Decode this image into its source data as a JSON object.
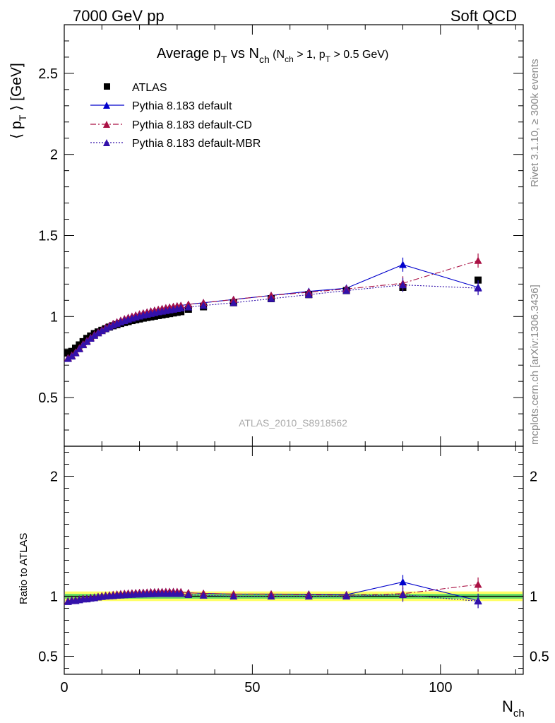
{
  "header": {
    "left": "7000 GeV pp",
    "right": "Soft QCD"
  },
  "side_labels": {
    "rivet": "Rivet 3.1.10, ≥ 300k events",
    "mcplots": "mcplots.cern.ch [arXiv:1306.3436]"
  },
  "watermark": "ATLAS_2010_S8918562",
  "colors": {
    "atlas": "#000000",
    "default": "#0000cc",
    "cd": "#aa1144",
    "mbr": "#3311aa",
    "band_inner": "#66dd66",
    "band_outer": "#ffff66"
  },
  "chart_data": {
    "type": "scatter",
    "title": {
      "main": "Average p",
      "main_sub": "T",
      "mid": " vs N",
      "mid_sub": "ch",
      "cond_open": " (N",
      "cond_sub1": "ch",
      "cond_mid": " > 1, p",
      "cond_sub2": "T",
      "cond_close": " > 0.5 GeV)"
    },
    "ylabel": {
      "pre": "⟨ p",
      "sub": "T",
      "post": " ⟩ [GeV]"
    },
    "xlabel": {
      "main": "N",
      "sub": "ch"
    },
    "ratio_ylabel": "Ratio to ATLAS",
    "xlim": [
      0,
      122
    ],
    "ylim": [
      0.2,
      2.8
    ],
    "ratio_ylim": [
      0.35,
      2.25
    ],
    "x_ticks": [
      "0",
      "50",
      "100"
    ],
    "y_ticks": [
      "0.5",
      "1",
      "1.5",
      "2",
      "2.5"
    ],
    "ratio_y_ticks": [
      "0.5",
      "1",
      "2"
    ],
    "x": [
      1,
      2,
      3,
      4,
      5,
      6,
      7,
      8,
      9,
      10,
      11,
      12,
      13,
      14,
      15,
      16,
      17,
      18,
      19,
      20,
      21,
      22,
      23,
      24,
      25,
      26,
      27,
      28,
      29,
      30,
      31,
      33,
      37,
      45,
      55,
      65,
      75,
      90,
      110
    ],
    "series": [
      {
        "name": "ATLAS",
        "key": "atlas",
        "marker": "square",
        "values": [
          0.775,
          0.785,
          0.805,
          0.825,
          0.845,
          0.865,
          0.88,
          0.895,
          0.905,
          0.915,
          0.925,
          0.935,
          0.943,
          0.95,
          0.957,
          0.963,
          0.969,
          0.975,
          0.98,
          0.985,
          0.99,
          0.994,
          0.998,
          1.002,
          1.006,
          1.01,
          1.014,
          1.018,
          1.022,
          1.026,
          1.03,
          1.045,
          1.06,
          1.085,
          1.11,
          1.135,
          1.16,
          1.18,
          1.225
        ]
      },
      {
        "name": "Pythia 8.183 default",
        "key": "default",
        "marker": "triangle",
        "dash": "",
        "values": [
          0.745,
          0.76,
          0.78,
          0.805,
          0.83,
          0.85,
          0.87,
          0.888,
          0.903,
          0.918,
          0.932,
          0.944,
          0.956,
          0.966,
          0.976,
          0.985,
          0.993,
          1.001,
          1.008,
          1.015,
          1.021,
          1.027,
          1.033,
          1.038,
          1.043,
          1.048,
          1.053,
          1.057,
          1.061,
          1.065,
          1.068,
          1.075,
          1.085,
          1.105,
          1.13,
          1.155,
          1.175,
          1.32,
          1.18
        ]
      },
      {
        "name": "Pythia 8.183 default-CD",
        "key": "cd",
        "marker": "triangle",
        "dash": "8,3,2,3",
        "values": [
          0.745,
          0.76,
          0.78,
          0.805,
          0.83,
          0.85,
          0.87,
          0.888,
          0.903,
          0.918,
          0.932,
          0.944,
          0.956,
          0.966,
          0.976,
          0.985,
          0.993,
          1.001,
          1.008,
          1.015,
          1.021,
          1.027,
          1.033,
          1.038,
          1.043,
          1.048,
          1.053,
          1.057,
          1.061,
          1.065,
          1.068,
          1.075,
          1.085,
          1.105,
          1.13,
          1.15,
          1.17,
          1.205,
          1.345
        ]
      },
      {
        "name": "Pythia 8.183 default-MBR",
        "key": "mbr",
        "marker": "triangle",
        "dash": "2,2",
        "values": [
          0.74,
          0.755,
          0.775,
          0.8,
          0.825,
          0.845,
          0.865,
          0.883,
          0.898,
          0.912,
          0.925,
          0.937,
          0.947,
          0.957,
          0.966,
          0.974,
          0.982,
          0.989,
          0.996,
          1.002,
          1.008,
          1.013,
          1.018,
          1.023,
          1.028,
          1.032,
          1.036,
          1.04,
          1.044,
          1.048,
          1.052,
          1.058,
          1.068,
          1.085,
          1.11,
          1.135,
          1.16,
          1.195,
          1.175
        ]
      }
    ],
    "band_inner_halfwidth": 0.02,
    "band_outer_halfwidth": 0.04
  }
}
